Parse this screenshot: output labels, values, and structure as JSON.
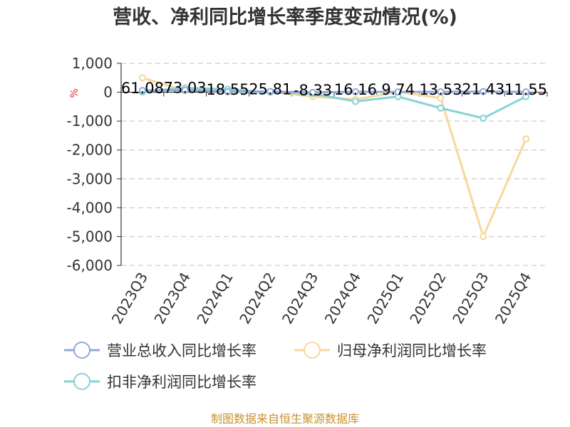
{
  "chart_data": {
    "type": "line",
    "title": "营收、净利同比增长率季度变动情况(%)",
    "unit": "%",
    "categories": [
      "2023Q3",
      "2023Q4",
      "2024Q1",
      "2024Q2",
      "2024Q3",
      "2024Q4",
      "2025Q1",
      "2025Q2",
      "2025Q3",
      "2025Q4"
    ],
    "ylim": [
      -6000,
      1000
    ],
    "yticks": [
      1000,
      0,
      -1000,
      -2000,
      -3000,
      -4000,
      -5000,
      -6000
    ],
    "ytick_labels": [
      "1,000",
      "0",
      "-1,000",
      "-2,000",
      "-3,000",
      "-4,000",
      "-5,000",
      "-6,000"
    ],
    "grid": true,
    "legend_position": "bottom",
    "series": [
      {
        "name": "营业总收入同比增长率",
        "color": "#8fa9d8",
        "values": [
          61.08,
          73.03,
          18.55,
          25.81,
          -8.33,
          16.16,
          9.74,
          13.53,
          21.43,
          11.55
        ],
        "labels": [
          "61.08",
          "73.03",
          "18.55",
          "25.81",
          "-8.33",
          "16.16",
          "9.74",
          "13.53",
          "21.43",
          "11.55"
        ]
      },
      {
        "name": "归母净利润同比增长率",
        "color": "#f7d79c",
        "values": [
          500,
          50,
          60,
          10,
          -150,
          -250,
          10,
          -200,
          -5000,
          -1620
        ]
      },
      {
        "name": "扣非净利润同比增长率",
        "color": "#86d3d7",
        "values": [
          10,
          150,
          100,
          0,
          -50,
          -320,
          -150,
          -550,
          -900,
          -150
        ]
      }
    ],
    "source": "制图数据来自恒生聚源数据库"
  }
}
